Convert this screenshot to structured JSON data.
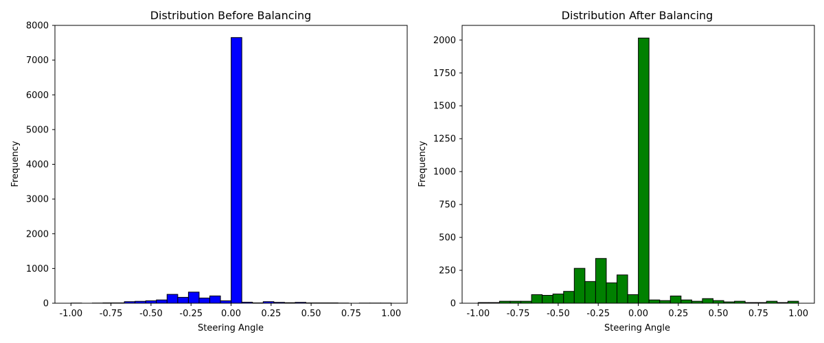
{
  "chart_data": [
    {
      "type": "bar",
      "title": "Distribution Before Balancing",
      "xlabel": "Steering Angle",
      "ylabel": "Frequency",
      "xlim": [
        -1.1,
        1.1
      ],
      "ylim": [
        0,
        8000
      ],
      "xticks": [
        "-1.00",
        "-0.75",
        "-0.50",
        "-0.25",
        "0.00",
        "0.25",
        "0.50",
        "0.75",
        "1.00"
      ],
      "xtick_values": [
        -1.0,
        -0.75,
        -0.5,
        -0.25,
        0.0,
        0.25,
        0.5,
        0.75,
        1.0
      ],
      "yticks": [
        "0",
        "1000",
        "2000",
        "3000",
        "4000",
        "5000",
        "6000",
        "7000",
        "8000"
      ],
      "ytick_values": [
        0,
        1000,
        2000,
        3000,
        4000,
        5000,
        6000,
        7000,
        8000
      ],
      "bin_start": -1.0,
      "bin_width": 0.0667,
      "values": [
        5,
        0,
        5,
        10,
        10,
        45,
        55,
        70,
        95,
        255,
        170,
        320,
        150,
        210,
        70,
        7650,
        30,
        10,
        45,
        25,
        15,
        25,
        10,
        10,
        10,
        5,
        0,
        5,
        5,
        5
      ],
      "bar_color": "#0000ff",
      "edge_color": "#000000",
      "grid": false
    },
    {
      "type": "bar",
      "title": "Distribution After Balancing",
      "xlabel": "Steering Angle",
      "ylabel": "Frequency",
      "xlim": [
        -1.1,
        1.1
      ],
      "ylim": [
        0,
        2111
      ],
      "xticks": [
        "-1.00",
        "-0.75",
        "-0.50",
        "-0.25",
        "0.00",
        "0.25",
        "0.50",
        "0.75",
        "1.00"
      ],
      "xtick_values": [
        -1.0,
        -0.75,
        -0.5,
        -0.25,
        0.0,
        0.25,
        0.5,
        0.75,
        1.0
      ],
      "yticks": [
        "0",
        "250",
        "500",
        "750",
        "1000",
        "1250",
        "1500",
        "1750",
        "2000"
      ],
      "ytick_values": [
        0,
        250,
        500,
        750,
        1000,
        1250,
        1500,
        1750,
        2000
      ],
      "bin_start": -1.0,
      "bin_width": 0.0667,
      "values": [
        5,
        5,
        15,
        15,
        15,
        65,
        60,
        70,
        90,
        265,
        165,
        340,
        155,
        215,
        65,
        2015,
        25,
        20,
        55,
        25,
        15,
        35,
        20,
        10,
        15,
        5,
        5,
        15,
        5,
        15
      ],
      "bar_color": "#008000",
      "edge_color": "#000000",
      "grid": false
    }
  ]
}
